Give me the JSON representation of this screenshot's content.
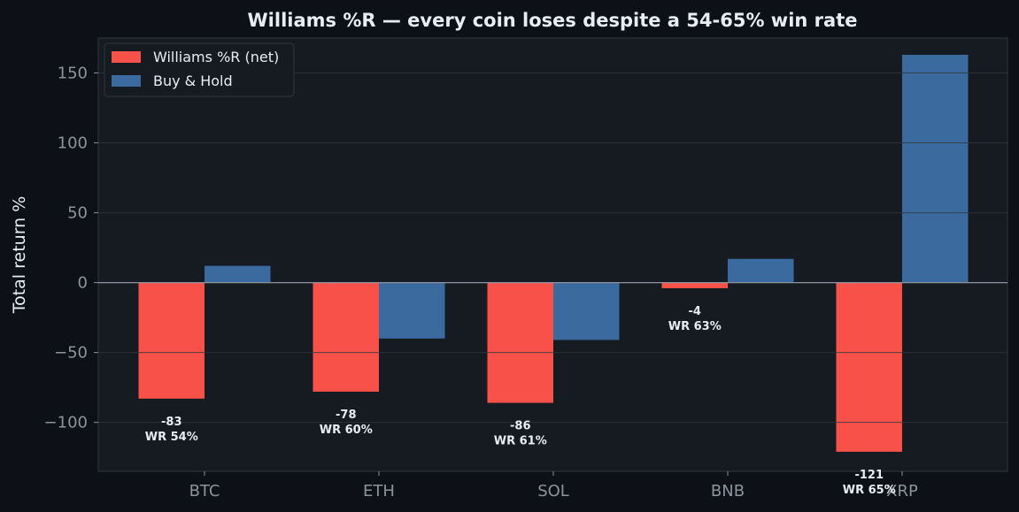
{
  "chart_data": {
    "type": "bar",
    "title": "Williams %R — every coin loses despite a 54-65% win rate",
    "xlabel": "",
    "ylabel": "Total return %",
    "ylim": [
      -135,
      175
    ],
    "yticks": [
      150,
      100,
      50,
      0,
      -50,
      -100
    ],
    "ytick_labels": [
      "150",
      "100",
      "50",
      "0",
      "−50",
      "−100"
    ],
    "categories": [
      "BTC",
      "ETH",
      "SOL",
      "BNB",
      "XRP"
    ],
    "series": [
      {
        "name": "Williams %R (net)",
        "color": "#f85149",
        "values": [
          -83,
          -78,
          -86,
          -4,
          -121
        ]
      },
      {
        "name": "Buy & Hold",
        "color": "#3b6a9e",
        "values": [
          12,
          -40,
          -41,
          17,
          163
        ]
      }
    ],
    "annotations": [
      {
        "value": "-83",
        "win_rate": "WR 54%"
      },
      {
        "value": "-78",
        "win_rate": "WR 60%"
      },
      {
        "value": "-86",
        "win_rate": "WR 61%"
      },
      {
        "value": "-4",
        "win_rate": "WR 63%"
      },
      {
        "value": "-121",
        "win_rate": "WR 65%"
      }
    ],
    "grid": true,
    "legend": "top-left"
  }
}
